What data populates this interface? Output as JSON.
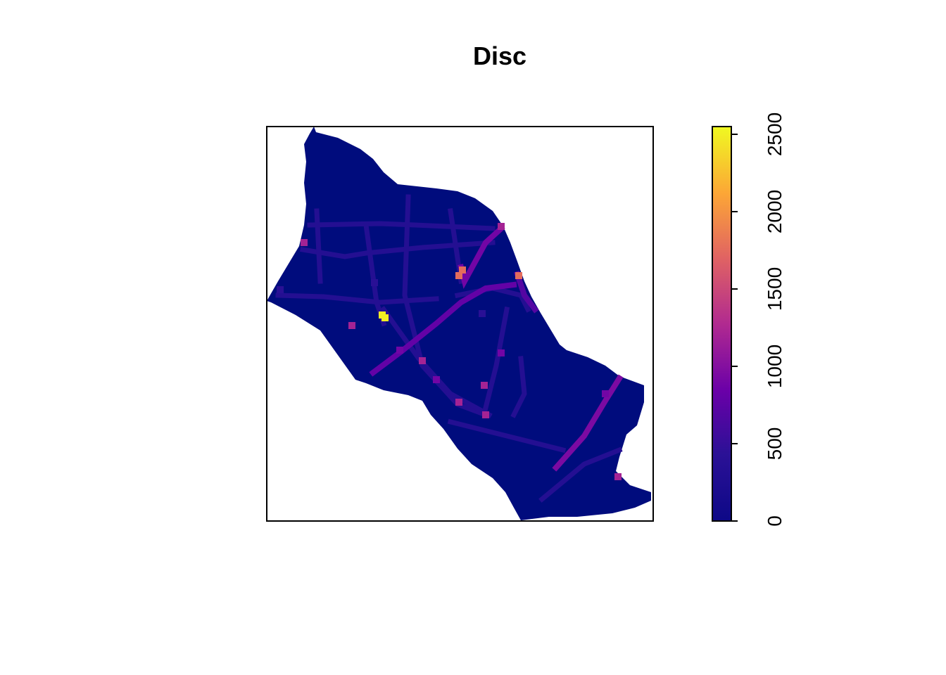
{
  "chart_data": {
    "type": "heatmap",
    "title": "Disc",
    "xlabel": "",
    "ylabel": "",
    "color_scale": {
      "min": 0,
      "max": 2550,
      "ticks": [
        0,
        500,
        1000,
        1500,
        2000,
        2500
      ],
      "tick_labels": [
        "0",
        "500",
        "1000",
        "1500",
        "2000",
        "2500"
      ],
      "palette": [
        "#0d0887",
        "#2b1196",
        "#6a00a8",
        "#b12a90",
        "#e16462",
        "#fca636",
        "#f0f921"
      ],
      "background_value_color": "#000c7d"
    },
    "axes": {
      "box": true,
      "ticks_shown": false,
      "grid": false
    },
    "legend": {
      "type": "colorbar",
      "placement": "right",
      "orientation": "vertical"
    },
    "region_boundary_description": "Irregular polygon-shaped study area running from upper-left to lower-right, mostly low values",
    "hotspots": [
      {
        "value": 2500,
        "note": "brightest cell, yellow"
      },
      {
        "value": 1750,
        "note": "orange cells near upper-centre streets"
      },
      {
        "value": 1200,
        "note": "magenta street segments"
      },
      {
        "value": 900,
        "note": "diagonal road from lower centre toward lower right"
      },
      {
        "value": 400,
        "note": "faint street network"
      }
    ]
  }
}
